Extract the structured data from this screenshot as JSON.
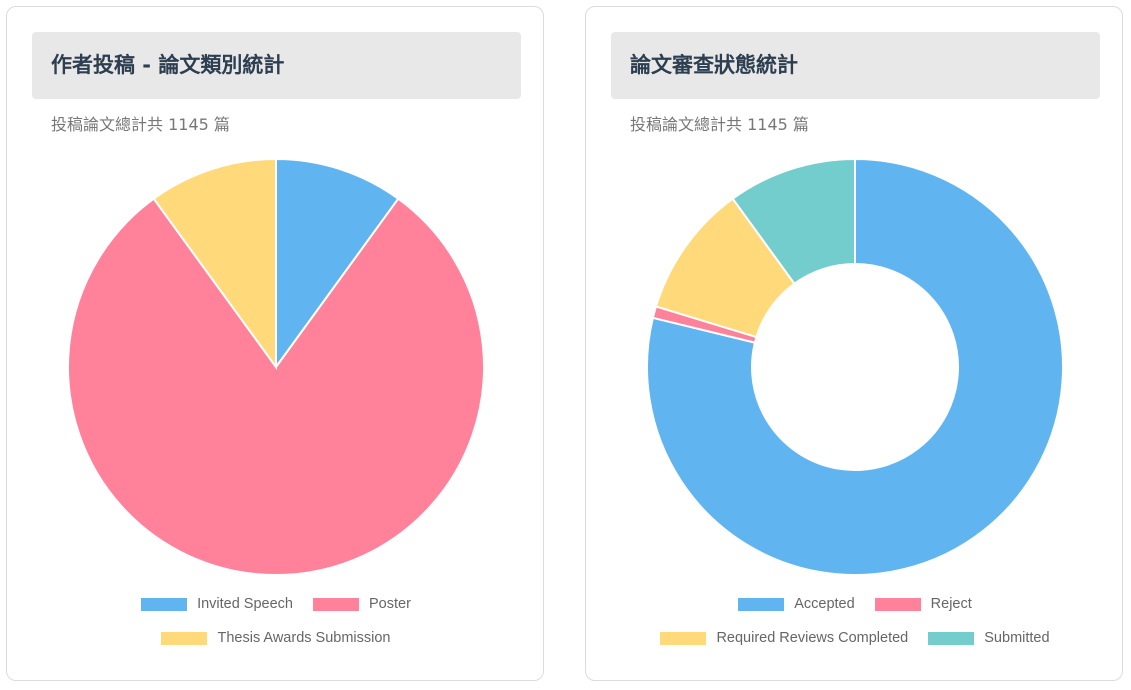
{
  "chart_data": [
    {
      "type": "pie",
      "title": "作者投稿 - 論文類別統計",
      "subtitle": "投稿論文總計共 1145 篇",
      "categories": [
        "Invited Speech",
        "Poster",
        "Thesis Awards Submission"
      ],
      "values": [
        10,
        80,
        10
      ],
      "colors": [
        "#60b4ef",
        "#ff829a",
        "#ffd97a"
      ]
    },
    {
      "type": "doughnut",
      "title": "論文審查狀態統計",
      "subtitle": "投稿論文總計共 1145 篇",
      "categories": [
        "Accepted",
        "Reject",
        "Required Reviews Completed",
        "Submitted"
      ],
      "values": [
        78.8,
        0.9,
        10.3,
        10.0
      ],
      "colors": [
        "#60b4ef",
        "#ff829a",
        "#ffd97a",
        "#72cdcc"
      ]
    }
  ]
}
